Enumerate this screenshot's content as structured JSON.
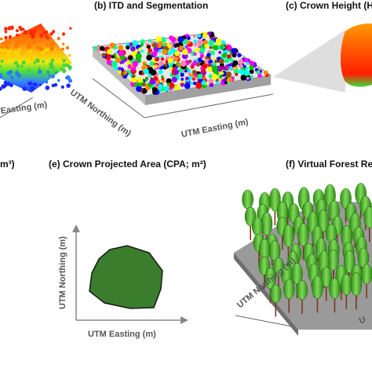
{
  "panels": {
    "a": {
      "axis_x": "Easting (m)"
    },
    "b": {
      "title": "(b) ITD and Segmentation",
      "axis_x": "UTM Easting (m)",
      "axis_y": "UTM Northing (m)"
    },
    "c": {
      "title": "(c) Crown Height (H"
    },
    "d": {
      "title_fragment": "m³)"
    },
    "e": {
      "title": "(e) Crown Projected Area (CPA; m²)",
      "axis_x": "UTM Easting (m)",
      "axis_y": "UTM Northing (m)"
    },
    "f": {
      "title": "(f) Virtual Forest Re",
      "axis_y": "UTM Northing (m)",
      "axis_x_fragment": "U"
    }
  },
  "colors": {
    "crown_fill": "#3a7d2c",
    "crown_stroke": "#1a1a1a",
    "tree_green": "#4caf2a",
    "trunk": "#7a3a1a",
    "ground": "#9a9a9a",
    "axis": "#888888"
  }
}
